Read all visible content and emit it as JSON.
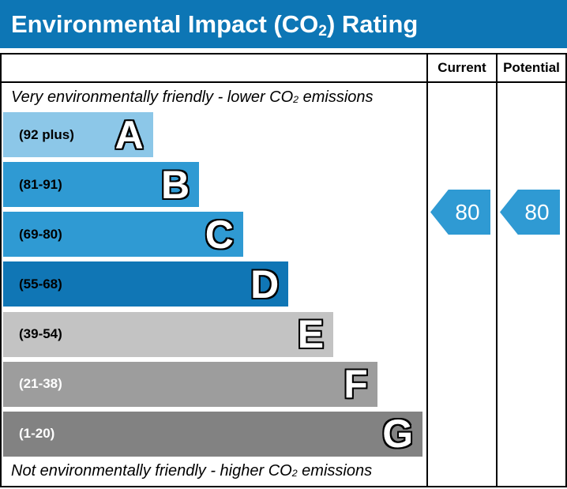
{
  "title": {
    "pre": "Environmental Impact (CO",
    "sub": "2",
    "post": ") Rating"
  },
  "header": {
    "current_label": "Current",
    "potential_label": "Potential"
  },
  "notes": {
    "top_pre": "Very environmentally friendly - lower CO",
    "top_sub": "2",
    "top_post": " emissions",
    "bottom_pre": "Not environmentally friendly - higher CO",
    "bottom_sub": "2",
    "bottom_post": " emissions"
  },
  "ratings": {
    "current": "80",
    "potential": "80"
  },
  "colors": {
    "header_blue": "#0d76b5",
    "arrow_blue": "#2f9ad3",
    "border_black": "#000000",
    "letter_fill": "#ffffff",
    "letter_outline": "#000000"
  },
  "chart_data": {
    "type": "bar",
    "title": "Environmental Impact (CO2) Rating",
    "top_annotation": "Very environmentally friendly - lower CO2 emissions",
    "bottom_annotation": "Not environmentally friendly - higher CO2 emissions",
    "columns": [
      "Current",
      "Potential"
    ],
    "current_value": 80,
    "potential_value": 80,
    "current_band": "C",
    "potential_band": "C",
    "legend_position": "none",
    "bands": [
      {
        "letter": "A",
        "range_label": "(92 plus)",
        "min": 92,
        "max": null,
        "color": "#8cc7e8",
        "width_pct": 35.4,
        "label_color": "#000000"
      },
      {
        "letter": "B",
        "range_label": "(81-91)",
        "min": 81,
        "max": 91,
        "color": "#2f9ad3",
        "width_pct": 46.3,
        "label_color": "#000000"
      },
      {
        "letter": "C",
        "range_label": "(69-80)",
        "min": 69,
        "max": 80,
        "color": "#2f9ad3",
        "width_pct": 56.7,
        "label_color": "#000000"
      },
      {
        "letter": "D",
        "range_label": "(55-68)",
        "min": 55,
        "max": 68,
        "color": "#1076b5",
        "width_pct": 67.4,
        "label_color": "#000000"
      },
      {
        "letter": "E",
        "range_label": "(39-54)",
        "min": 39,
        "max": 54,
        "color": "#c3c3c3",
        "width_pct": 78.0,
        "label_color": "#000000"
      },
      {
        "letter": "F",
        "range_label": "(21-38)",
        "min": 21,
        "max": 38,
        "color": "#9d9d9d",
        "width_pct": 88.4,
        "label_color": "#ffffff"
      },
      {
        "letter": "G",
        "range_label": "(1-20)",
        "min": 1,
        "max": 20,
        "color": "#828282",
        "width_pct": 99.1,
        "label_color": "#ffffff"
      }
    ]
  }
}
